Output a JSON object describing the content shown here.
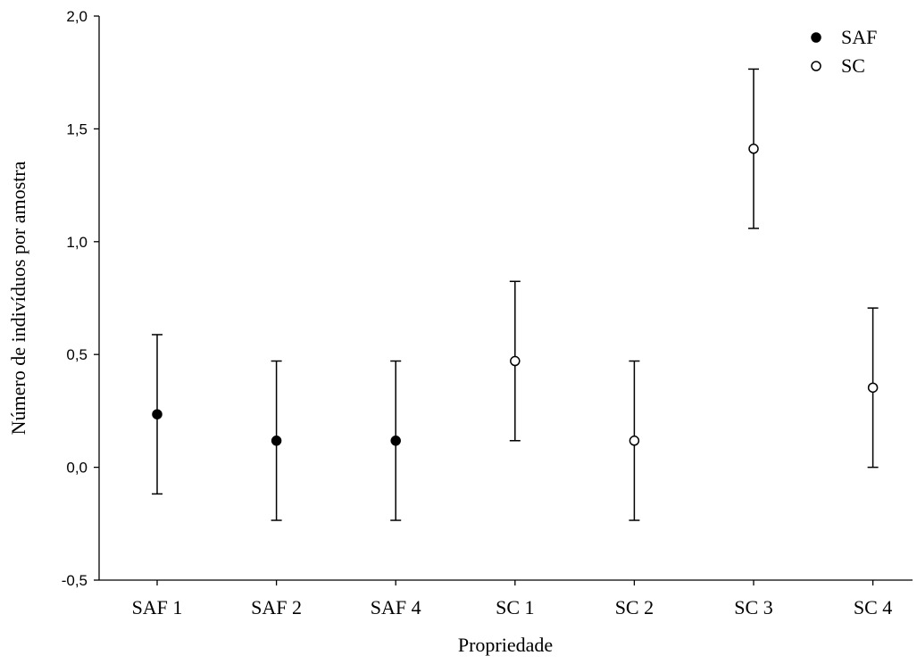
{
  "chart_data": {
    "type": "scatter",
    "xlabel": "Propriedade",
    "ylabel": "Número de indivíduos por amostra",
    "categories": [
      "SAF 1",
      "SAF 2",
      "SAF 4",
      "SC 1",
      "SC 2",
      "SC 3",
      "SC 4"
    ],
    "ylim": [
      -0.5,
      2.0
    ],
    "yticks": [
      -0.5,
      0.0,
      0.5,
      1.0,
      1.5,
      2.0
    ],
    "ytick_labels": [
      "-0,5",
      "0,0",
      "0,5",
      "1,0",
      "1,5",
      "2,0"
    ],
    "grid": false,
    "legend_position": "top-right",
    "series": [
      {
        "name": "SAF",
        "marker": "filled-circle",
        "color": "#000000",
        "points": [
          {
            "category": "SAF 1",
            "y": 0.235,
            "low": -0.118,
            "high": 0.588
          },
          {
            "category": "SAF 2",
            "y": 0.118,
            "low": -0.235,
            "high": 0.471
          },
          {
            "category": "SAF 4",
            "y": 0.118,
            "low": -0.235,
            "high": 0.471
          }
        ]
      },
      {
        "name": "SC",
        "marker": "open-circle",
        "color": "#000000",
        "points": [
          {
            "category": "SC 1",
            "y": 0.471,
            "low": 0.118,
            "high": 0.824
          },
          {
            "category": "SC 2",
            "y": 0.118,
            "low": -0.235,
            "high": 0.471
          },
          {
            "category": "SC 3",
            "y": 1.412,
            "low": 1.059,
            "high": 1.765
          },
          {
            "category": "SC 4",
            "y": 0.353,
            "low": 0.0,
            "high": 0.706
          }
        ]
      }
    ]
  }
}
